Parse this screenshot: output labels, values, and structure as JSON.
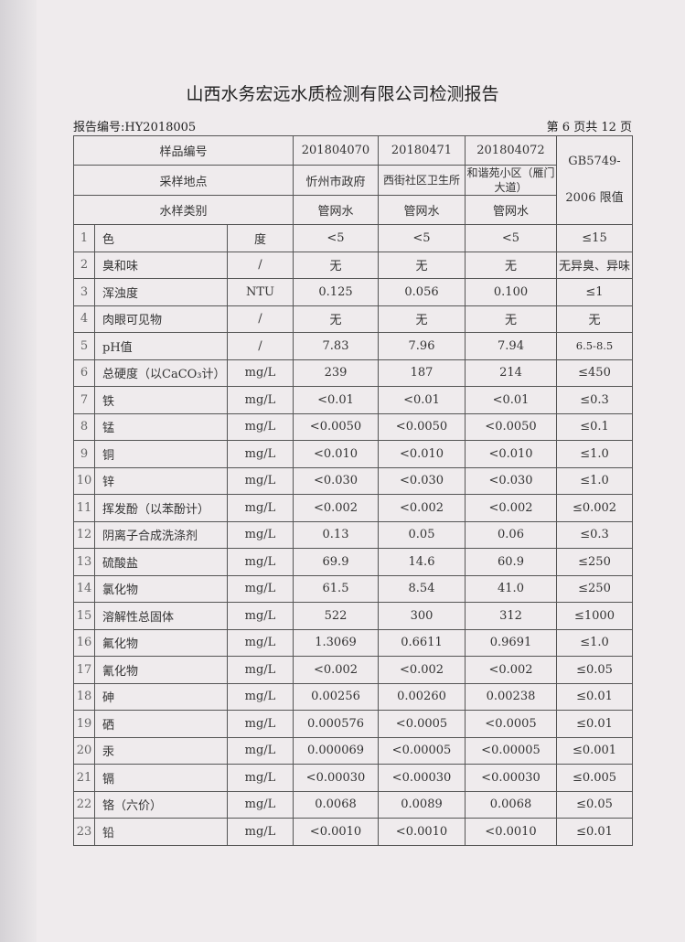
{
  "title": "山西水务宏远水质检测有限公司检测报告",
  "report_no": "报告编号:HY2018005",
  "page_info": "第 6 页共 12 页",
  "header": {
    "sample_no_label": "样品编号",
    "location_label": "采样地点",
    "type_label": "水样类别",
    "samples": [
      {
        "no": "201804070",
        "location": "忻州市政府",
        "type": "管网水"
      },
      {
        "no": "20180471",
        "location": "西街社区卫生所",
        "type": "管网水"
      },
      {
        "no": "201804072",
        "location": "和谐苑小区（雁门大道）",
        "type": "管网水"
      }
    ],
    "standard_line1": "GB5749-",
    "standard_line2": "2006 限值"
  },
  "rows": [
    {
      "n": "1",
      "item": "色",
      "unit": "度",
      "v": [
        "<5",
        "<5",
        "<5"
      ],
      "limit": "≤15"
    },
    {
      "n": "2",
      "item": "臭和味",
      "unit": "/",
      "v": [
        "无",
        "无",
        "无"
      ],
      "limit": "无异臭、异味"
    },
    {
      "n": "3",
      "item": "浑浊度",
      "unit": "NTU",
      "v": [
        "0.125",
        "0.056",
        "0.100"
      ],
      "limit": "≤1"
    },
    {
      "n": "4",
      "item": "肉眼可见物",
      "unit": "/",
      "v": [
        "无",
        "无",
        "无"
      ],
      "limit": "无"
    },
    {
      "n": "5",
      "item": "pH值",
      "unit": "/",
      "v": [
        "7.83",
        "7.96",
        "7.94"
      ],
      "limit": "6.5-8.5"
    },
    {
      "n": "6",
      "item": "总硬度（以CaCO₃计）",
      "unit": "mg/L",
      "v": [
        "239",
        "187",
        "214"
      ],
      "limit": "≤450"
    },
    {
      "n": "7",
      "item": "铁",
      "unit": "mg/L",
      "v": [
        "<0.01",
        "<0.01",
        "<0.01"
      ],
      "limit": "≤0.3"
    },
    {
      "n": "8",
      "item": "锰",
      "unit": "mg/L",
      "v": [
        "<0.0050",
        "<0.0050",
        "<0.0050"
      ],
      "limit": "≤0.1"
    },
    {
      "n": "9",
      "item": "铜",
      "unit": "mg/L",
      "v": [
        "<0.010",
        "<0.010",
        "<0.010"
      ],
      "limit": "≤1.0"
    },
    {
      "n": "10",
      "item": "锌",
      "unit": "mg/L",
      "v": [
        "<0.030",
        "<0.030",
        "<0.030"
      ],
      "limit": "≤1.0"
    },
    {
      "n": "11",
      "item": "挥发酚（以苯酚计）",
      "unit": "mg/L",
      "v": [
        "<0.002",
        "<0.002",
        "<0.002"
      ],
      "limit": "≤0.002"
    },
    {
      "n": "12",
      "item": "阴离子合成洗涤剂",
      "unit": "mg/L",
      "v": [
        "0.13",
        "0.05",
        "0.06"
      ],
      "limit": "≤0.3"
    },
    {
      "n": "13",
      "item": "硫酸盐",
      "unit": "mg/L",
      "v": [
        "69.9",
        "14.6",
        "60.9"
      ],
      "limit": "≤250"
    },
    {
      "n": "14",
      "item": "氯化物",
      "unit": "mg/L",
      "v": [
        "61.5",
        "8.54",
        "41.0"
      ],
      "limit": "≤250"
    },
    {
      "n": "15",
      "item": "溶解性总固体",
      "unit": "mg/L",
      "v": [
        "522",
        "300",
        "312"
      ],
      "limit": "≤1000"
    },
    {
      "n": "16",
      "item": "氟化物",
      "unit": "mg/L",
      "v": [
        "1.3069",
        "0.6611",
        "0.9691"
      ],
      "limit": "≤1.0"
    },
    {
      "n": "17",
      "item": "氰化物",
      "unit": "mg/L",
      "v": [
        "<0.002",
        "<0.002",
        "<0.002"
      ],
      "limit": "≤0.05"
    },
    {
      "n": "18",
      "item": "砷",
      "unit": "mg/L",
      "v": [
        "0.00256",
        "0.00260",
        "0.00238"
      ],
      "limit": "≤0.01"
    },
    {
      "n": "19",
      "item": "硒",
      "unit": "mg/L",
      "v": [
        "0.000576",
        "<0.0005",
        "<0.0005"
      ],
      "limit": "≤0.01"
    },
    {
      "n": "20",
      "item": "汞",
      "unit": "mg/L",
      "v": [
        "0.000069",
        "<0.00005",
        "<0.00005"
      ],
      "limit": "≤0.001"
    },
    {
      "n": "21",
      "item": "镉",
      "unit": "mg/L",
      "v": [
        "<0.00030",
        "<0.00030",
        "<0.00030"
      ],
      "limit": "≤0.005"
    },
    {
      "n": "22",
      "item": "铬（六价）",
      "unit": "mg/L",
      "v": [
        "0.0068",
        "0.0089",
        "0.0068"
      ],
      "limit": "≤0.05"
    },
    {
      "n": "23",
      "item": "铅",
      "unit": "mg/L",
      "v": [
        "<0.0010",
        "<0.0010",
        "<0.0010"
      ],
      "limit": "≤0.01"
    }
  ]
}
